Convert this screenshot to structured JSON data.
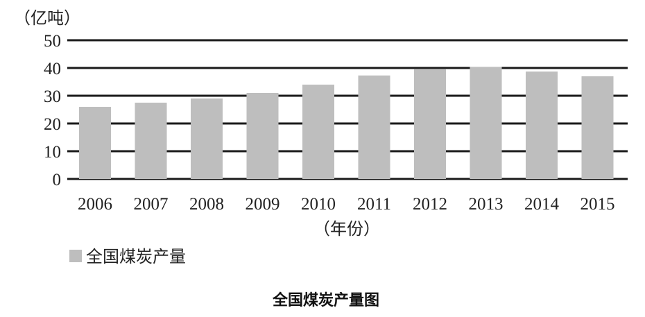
{
  "chart_data": {
    "type": "bar",
    "title": "全国煤炭产量图",
    "ylabel": "（亿吨）",
    "xlabel": "（年份）",
    "categories": [
      "2006",
      "2007",
      "2008",
      "2009",
      "2010",
      "2011",
      "2012",
      "2013",
      "2014",
      "2015"
    ],
    "series": [
      {
        "name": "全国煤炭产量",
        "values": [
          26,
          27.5,
          29,
          31,
          34,
          37.3,
          39.5,
          40.4,
          38.7,
          37
        ]
      }
    ],
    "ylim": [
      0,
      50
    ],
    "yticks": [
      "0",
      "10",
      "20",
      "30",
      "40",
      "50"
    ],
    "grid": true,
    "legend": "bottom-left",
    "colors": {
      "bar": "#bebebe",
      "grid": "#1a1a1a",
      "text": "#222222"
    }
  }
}
